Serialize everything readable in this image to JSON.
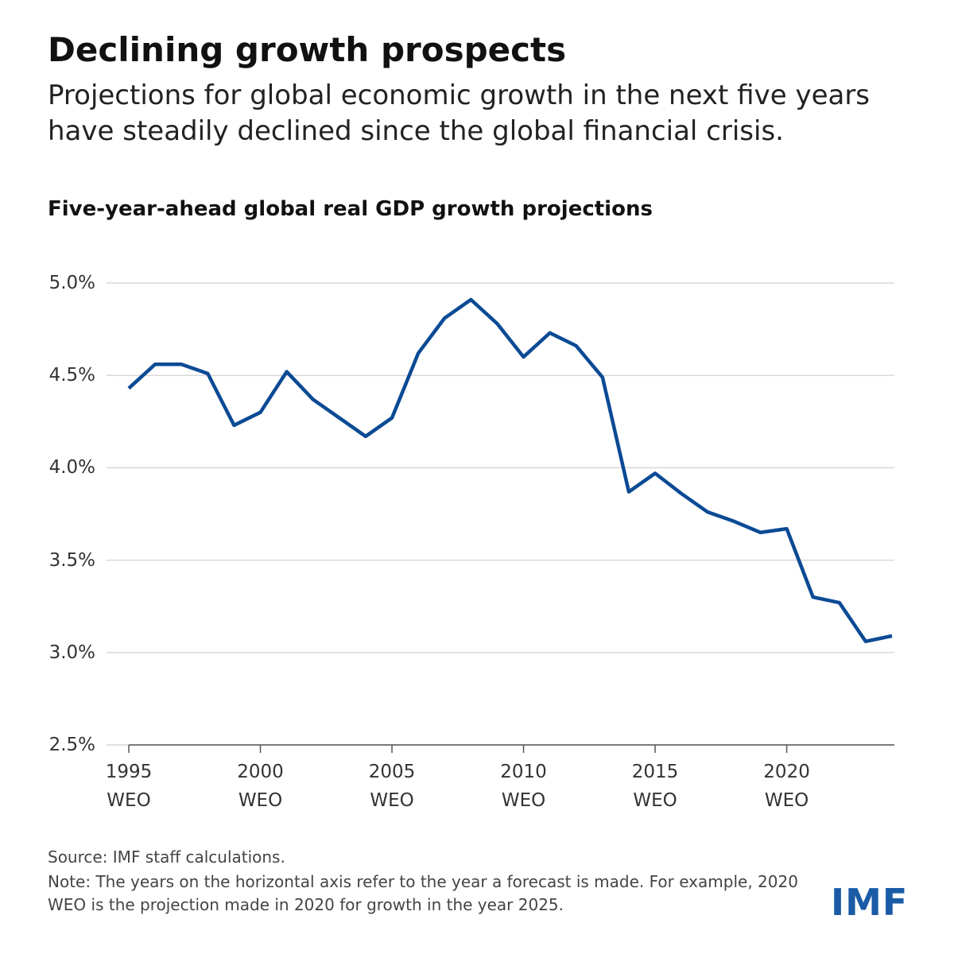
{
  "header": {
    "title": "Declining growth prospects",
    "subtitle": "Projections for global economic growth in the next five years have steadily declined since the global financial crisis."
  },
  "chart_data": {
    "type": "line",
    "title": "Five-year-ahead global real GDP growth projections",
    "x": [
      1995,
      1996,
      1997,
      1998,
      1999,
      2000,
      2001,
      2002,
      2003,
      2004,
      2005,
      2006,
      2007,
      2008,
      2009,
      2010,
      2011,
      2012,
      2013,
      2014,
      2015,
      2016,
      2017,
      2018,
      2019,
      2020,
      2021,
      2022,
      2023,
      2024
    ],
    "series": [
      {
        "color": "#0b4a94",
        "values": [
          4.43,
          4.56,
          4.56,
          4.51,
          4.23,
          4.3,
          4.52,
          4.37,
          4.27,
          4.17,
          4.27,
          4.62,
          4.81,
          4.91,
          4.78,
          4.6,
          4.73,
          4.66,
          4.49,
          3.87,
          3.97,
          3.86,
          3.76,
          3.71,
          3.65,
          3.67,
          3.3,
          3.27,
          3.06,
          3.09
        ]
      }
    ],
    "xlim": [
      1995,
      2024
    ],
    "xticks": [
      {
        "value": 1995,
        "label": "1995\nWEO"
      },
      {
        "value": 2000,
        "label": "2000\nWEO"
      },
      {
        "value": 2005,
        "label": "2005\nWEO"
      },
      {
        "value": 2010,
        "label": "2010\nWEO"
      },
      {
        "value": 2015,
        "label": "2015\nWEO"
      },
      {
        "value": 2020,
        "label": "2020\nWEO"
      }
    ],
    "ylim": [
      2.5,
      5.0
    ],
    "yticks": [
      {
        "value": 2.5,
        "label": "2.5%"
      },
      {
        "value": 3.0,
        "label": "3.0%"
      },
      {
        "value": 3.5,
        "label": "3.5%"
      },
      {
        "value": 4.0,
        "label": "4.0%"
      },
      {
        "value": 4.5,
        "label": "4.5%"
      },
      {
        "value": 5.0,
        "label": "5.0%"
      }
    ],
    "grid": true
  },
  "footer": {
    "source": "Source: IMF staff calculations.",
    "note": "Note: The years on the horizontal axis refer to the year a forecast is made. For example, 2020 WEO is the projection made in 2020 for growth in the year 2025.",
    "logo": "IMF"
  }
}
